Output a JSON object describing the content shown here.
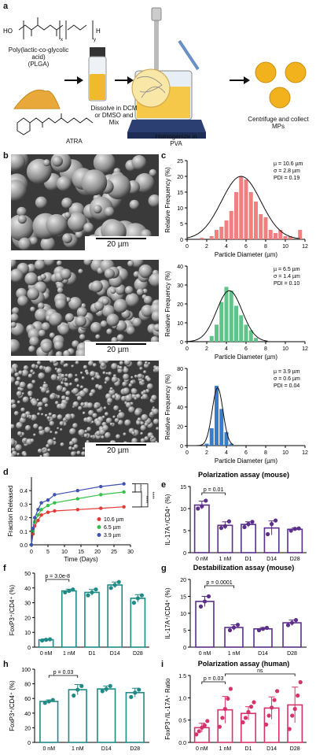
{
  "panel_labels": {
    "a": "a",
    "b": "b",
    "c": "c",
    "d": "d",
    "e": "e",
    "f": "f",
    "g": "g",
    "h": "h",
    "i": "i"
  },
  "schematic": {
    "plga_label": "Poly(lactic-co-glycolic acid)",
    "plga_abbrev": "(PLGA)",
    "atra_label": "ATRA",
    "dissolve_label": [
      "Dissolve in DCM",
      "or DMSO and",
      "Mix"
    ],
    "homogenize_label": [
      "Homogenize in",
      "PVA"
    ],
    "centrifuge_label": [
      "Centrifuge and collect",
      "MPs"
    ],
    "formula_ho": "HO",
    "formula_h": "H",
    "formula_x": "x",
    "formula_y": "y",
    "colors": {
      "atra": "#e8a93a",
      "vial_liquid": "#f0b92e",
      "mp": "#f2b21e",
      "plate": "#2b3f72",
      "beaker_liquid": "#f5c84a"
    }
  },
  "sem_images": [
    {
      "scale_label": "20 µm",
      "texture": "large"
    },
    {
      "scale_label": "20 µm",
      "texture": "medium"
    },
    {
      "scale_label": "20 µm",
      "texture": "small"
    }
  ],
  "chart_data": [
    {
      "id": "c1",
      "type": "bar",
      "color": "#f08080",
      "ylabel": "Relative Frequency (%)",
      "xlabel": "Particle Diameter (µm)",
      "ylim": [
        0,
        25
      ],
      "yticks": [
        0,
        5,
        10,
        15,
        20,
        25
      ],
      "xlim": [
        0,
        12
      ],
      "xticks": [
        0,
        2,
        4,
        6,
        8,
        10,
        12
      ],
      "x": [
        1.5,
        2.5,
        3,
        3.5,
        4,
        4.5,
        5,
        5.5,
        6,
        6.5,
        7,
        7.5,
        8,
        8.5,
        9,
        9.5,
        10,
        10.5,
        11,
        11.5
      ],
      "values": [
        0.5,
        1,
        3,
        4,
        6,
        9,
        15,
        20,
        19,
        15,
        12,
        8,
        7,
        3,
        2,
        3,
        1,
        1,
        0,
        3
      ],
      "annotation": [
        "µ = 10.6 µm",
        "σ = 2.8 µm",
        "PDI = 0.19"
      ],
      "fit": {
        "mean": 5.5,
        "sd": 2.0,
        "peak": 20
      }
    },
    {
      "id": "c2",
      "type": "bar",
      "color": "#5fc48a",
      "ylabel": "Relative Frequency (%)",
      "xlabel": "Particle Diameter (µm)",
      "ylim": [
        0,
        40
      ],
      "yticks": [
        0,
        10,
        20,
        30,
        40
      ],
      "xlim": [
        0,
        12
      ],
      "xticks": [
        0,
        2,
        4,
        6,
        8,
        10,
        12
      ],
      "x": [
        2.5,
        3,
        3.5,
        4,
        4.5,
        5,
        5.5,
        6,
        6.5,
        7
      ],
      "values": [
        3,
        9,
        21,
        29,
        27,
        19,
        14,
        9,
        6,
        2
      ],
      "annotation": [
        "µ = 6.5 µm",
        "σ = 1.4 µm",
        "PDI = 0.10"
      ],
      "fit": {
        "mean": 4.3,
        "sd": 1.3,
        "peak": 27
      }
    },
    {
      "id": "c3",
      "type": "bar",
      "color": "#3a7cc7",
      "ylabel": "Relative Frequency (%)",
      "xlabel": "Particle Diameter (µm)",
      "ylim": [
        0,
        80
      ],
      "yticks": [
        0,
        20,
        40,
        60,
        80
      ],
      "xlim": [
        0,
        12
      ],
      "xticks": [
        0,
        2,
        4,
        6,
        8,
        10,
        12
      ],
      "x": [
        2,
        2.5,
        3,
        3.5,
        4,
        4.5
      ],
      "values": [
        2,
        18,
        62,
        38,
        14,
        2
      ],
      "annotation": [
        "µ = 3.9 µm",
        "σ = 0.6 µm",
        "PDI = 0.04"
      ],
      "fit": {
        "mean": 3.1,
        "sd": 0.55,
        "peak": 60
      }
    },
    {
      "id": "d",
      "type": "line",
      "ylabel": "Fraction Released",
      "xlabel": "Time (Days)",
      "ylim": [
        0,
        0.5
      ],
      "yticks": [
        0.0,
        0.1,
        0.2,
        0.3,
        0.4
      ],
      "xlim": [
        0,
        30
      ],
      "xticks": [
        0,
        5,
        10,
        15,
        20,
        25,
        30
      ],
      "x": [
        0,
        0.5,
        1,
        2,
        3,
        5,
        7,
        14,
        21,
        28
      ],
      "series": [
        {
          "name": "10.6 µm",
          "color": "#e53935",
          "values": [
            0,
            0.08,
            0.14,
            0.18,
            0.22,
            0.24,
            0.25,
            0.26,
            0.27,
            0.28
          ]
        },
        {
          "name": "6.5 µm",
          "color": "#34c04a",
          "values": [
            0,
            0.1,
            0.17,
            0.22,
            0.26,
            0.29,
            0.31,
            0.34,
            0.37,
            0.39
          ]
        },
        {
          "name": "3.9 µm",
          "color": "#3f51b5",
          "values": [
            0,
            0.12,
            0.2,
            0.26,
            0.31,
            0.33,
            0.37,
            0.4,
            0.43,
            0.45
          ]
        }
      ],
      "significance": [
        "****",
        "****",
        "****"
      ]
    },
    {
      "id": "e",
      "type": "bar",
      "title": "Polarization assay (mouse)",
      "color": "#5b2f8a",
      "fill": "#fff",
      "ylabel": "IL-17A⁺/CD4⁺ (%)",
      "ylim": [
        0,
        15
      ],
      "yticks": [
        0,
        5,
        10,
        15
      ],
      "categories": [
        "0 nM",
        "1 nM",
        "D1",
        "D14",
        "D28"
      ],
      "values": [
        10.8,
        6.2,
        6.4,
        5.6,
        5.3
      ],
      "points": [
        [
          10.0,
          10.5,
          11.8
        ],
        [
          5.6,
          6.0,
          7.1
        ],
        [
          5.8,
          6.5,
          7.0
        ],
        [
          4.2,
          6.5,
          7.3
        ],
        [
          5.0,
          5.4,
          5.5
        ]
      ],
      "errors": [
        0.9,
        0.8,
        0.6,
        1.6,
        0.3
      ],
      "comparisons": [
        {
          "from": 0,
          "to": 1,
          "label": "p = 0.01"
        }
      ]
    },
    {
      "id": "f",
      "type": "bar",
      "color": "#1f8a86",
      "fill": "#fff",
      "ylabel": "FoxP3⁺/CD4⁺ (%)",
      "ylim": [
        0,
        50
      ],
      "yticks": [
        0,
        10,
        20,
        30,
        40,
        50
      ],
      "categories": [
        "0 nM",
        "1 nM",
        "D1",
        "D14",
        "D28"
      ],
      "values": [
        5,
        38,
        37,
        42,
        33
      ],
      "points": [
        [
          4.5,
          5.0,
          5.3
        ],
        [
          37,
          38,
          39
        ],
        [
          35,
          37,
          39
        ],
        [
          40,
          42,
          44
        ],
        [
          30,
          33,
          35
        ]
      ],
      "errors": [
        0.5,
        1.2,
        2.0,
        2.0,
        2.5
      ],
      "comparisons": [
        {
          "from": 0,
          "to": 1,
          "label": "p = 3.0e-8"
        }
      ]
    },
    {
      "id": "g",
      "type": "bar",
      "title": "Destabilization assay (mouse)",
      "color": "#5b2f8a",
      "fill": "#fff",
      "ylabel": "IL-17A⁺/CD4⁺ (%)",
      "ylim": [
        0,
        20
      ],
      "yticks": [
        0,
        5,
        10,
        15,
        20
      ],
      "categories": [
        "0 nM",
        "1 nM",
        "D14",
        "D28"
      ],
      "values": [
        13.5,
        5.8,
        5.4,
        7.2
      ],
      "points": [
        [
          12.0,
          13.5,
          15.0
        ],
        [
          5.0,
          5.8,
          6.6
        ],
        [
          5.0,
          5.4,
          5.7
        ],
        [
          6.5,
          7.2,
          8.0
        ]
      ],
      "errors": [
        1.5,
        0.8,
        0.4,
        0.8
      ],
      "comparisons": [
        {
          "from": 0,
          "to": 1,
          "label": "p = 0.0001"
        }
      ]
    },
    {
      "id": "h",
      "type": "bar",
      "color": "#1f8a86",
      "fill": "#fff",
      "ylabel": "FoxP3⁺/CD4⁺ (%)",
      "ylim": [
        0,
        100
      ],
      "yticks": [
        0,
        20,
        40,
        60,
        80,
        100
      ],
      "categories": [
        "0 nM",
        "1 nM",
        "D14",
        "D28"
      ],
      "values": [
        56,
        72,
        73,
        68
      ],
      "points": [
        [
          54,
          56,
          58
        ],
        [
          64,
          72,
          77
        ],
        [
          70,
          73,
          77
        ],
        [
          62,
          68,
          72
        ]
      ],
      "errors": [
        2,
        7,
        4,
        6
      ],
      "comparisons": [
        {
          "from": 0,
          "to": 1,
          "label": "p = 0.03"
        }
      ]
    },
    {
      "id": "i",
      "type": "bar",
      "title": "Polarization assay (human)",
      "color": "#d6336c",
      "fill": "#fff",
      "ylabel": "FoxP3⁺/IL-17A⁺ Ratio",
      "ylim": [
        0,
        1.5
      ],
      "yticks": [
        0.0,
        0.5,
        1.0,
        1.5
      ],
      "categories": [
        "0 nM",
        "1 nM",
        "D1",
        "D14",
        "D28"
      ],
      "values": [
        0.33,
        0.73,
        0.65,
        0.77,
        0.84
      ],
      "points": [
        [
          0.18,
          0.25,
          0.33,
          0.38,
          0.48
        ],
        [
          0.35,
          0.55,
          0.75,
          0.98,
          1.2
        ],
        [
          0.45,
          0.55,
          0.68,
          0.8,
          0.9
        ],
        [
          0.4,
          0.6,
          0.78,
          0.95,
          1.15
        ],
        [
          0.3,
          0.6,
          0.75,
          1.05,
          1.35
        ]
      ],
      "errors": [
        0.1,
        0.3,
        0.15,
        0.25,
        0.4
      ],
      "comparisons": [
        {
          "from": 0,
          "to": 1,
          "label": "p = 0.03"
        },
        {
          "from": 1,
          "to": 4,
          "label": "ns"
        }
      ]
    }
  ]
}
